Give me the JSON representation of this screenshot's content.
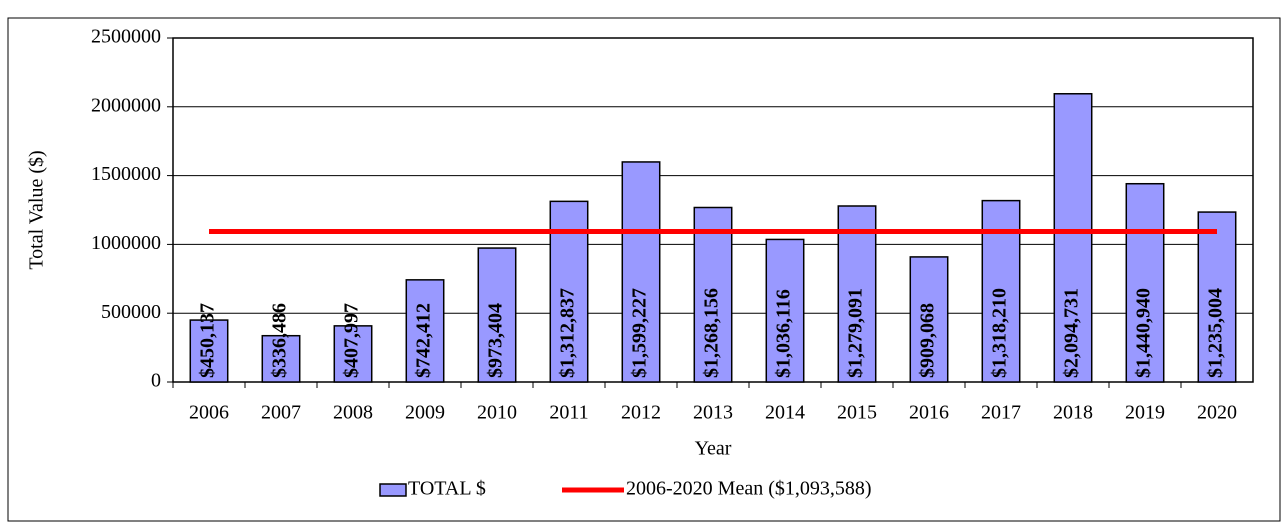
{
  "chart_data": {
    "type": "bar",
    "y_label": "Total Value ($)",
    "x_label": "Year",
    "categories": [
      "2006",
      "2007",
      "2008",
      "2009",
      "2010",
      "2011",
      "2012",
      "2013",
      "2014",
      "2015",
      "2016",
      "2017",
      "2018",
      "2019",
      "2020"
    ],
    "series": [
      {
        "name": "TOTAL $",
        "type": "bar",
        "color": "#9999ff",
        "values": [
          450137,
          336486,
          407997,
          742412,
          973404,
          1312837,
          1599227,
          1268156,
          1036116,
          1279091,
          909068,
          1318210,
          2094731,
          1440940,
          1235004
        ],
        "value_labels": [
          "$450,137",
          "$336,486",
          "$407,997",
          "$742,412",
          "$973,404",
          "$1,312,837",
          "$1,599,227",
          "$1,268,156",
          "$1,036,116",
          "$1,279,091",
          "$909,068",
          "$1,318,210",
          "$2,094,731",
          "$1,440,940",
          "$1,235,004"
        ]
      },
      {
        "name": "2006-2020 Mean ($1,093,588)",
        "type": "line",
        "color": "#ff0000",
        "values": [
          1093588,
          1093588,
          1093588,
          1093588,
          1093588,
          1093588,
          1093588,
          1093588,
          1093588,
          1093588,
          1093588,
          1093588,
          1093588,
          1093588,
          1093588
        ]
      }
    ],
    "ylim": [
      0,
      2500000
    ],
    "yticks": [
      0,
      500000,
      1000000,
      1500000,
      2000000,
      2500000
    ],
    "grid": true,
    "legend": "bottom"
  }
}
